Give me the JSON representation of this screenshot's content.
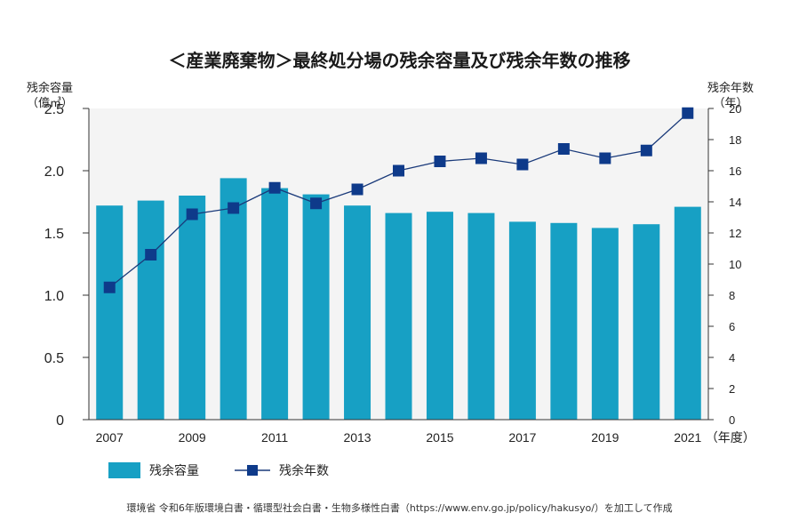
{
  "title": "＜産業廃棄物＞最終処分場の残余容量及び残余年数の推移",
  "left_axis": {
    "title_line1": "残余容量",
    "title_line2": "（億㎥）"
  },
  "right_axis": {
    "title_line1": "残余年数",
    "title_line2": "（年）"
  },
  "x_unit_label": "（年度）",
  "legend": {
    "bars_label": "残余容量",
    "line_label": "残余年数"
  },
  "source": "環境省 令和6年版環境白書・循環型社会白書・生物多様性白書（https://www.env.go.jp/policy/hakusyo/）を加工して作成",
  "colors": {
    "bar": "#17a0c4",
    "line": "#1a3a7a",
    "marker": "#0e3a8a",
    "plot_bg": "#f4f4f4",
    "axis": "#333333"
  },
  "chart_data": {
    "type": "bar+line",
    "title": "＜産業廃棄物＞最終処分場の残余容量及び残余年数の推移",
    "categories": [
      "2007",
      "2008",
      "2009",
      "2010",
      "2011",
      "2012",
      "2013",
      "2014",
      "2015",
      "2016",
      "2017",
      "2018",
      "2019",
      "2020",
      "2021"
    ],
    "x_tick_labels": [
      "2007",
      "",
      "2009",
      "",
      "2011",
      "",
      "2013",
      "",
      "2015",
      "",
      "2017",
      "",
      "2019",
      "",
      "2021"
    ],
    "series": [
      {
        "name": "残余容量",
        "axis": "left",
        "type": "bar",
        "values": [
          1.72,
          1.76,
          1.8,
          1.94,
          1.86,
          1.81,
          1.72,
          1.66,
          1.67,
          1.66,
          1.59,
          1.58,
          1.54,
          1.57,
          1.71
        ]
      },
      {
        "name": "残余年数",
        "axis": "right",
        "type": "line",
        "values": [
          8.5,
          10.6,
          13.2,
          13.6,
          14.9,
          13.9,
          14.8,
          16.0,
          16.6,
          16.8,
          16.4,
          17.4,
          16.8,
          17.3,
          19.7
        ]
      }
    ],
    "ylim_left": [
      0,
      2.5
    ],
    "y_ticks_left": [
      0,
      0.5,
      1.0,
      1.5,
      2.0,
      2.5
    ],
    "y_tick_labels_left": [
      "0",
      "0.5",
      "1.0",
      "1.5",
      "2.0",
      "2.5"
    ],
    "ylim_right": [
      0,
      20
    ],
    "y_ticks_right": [
      0,
      2,
      4,
      6,
      8,
      10,
      12,
      14,
      16,
      18,
      20
    ],
    "y_tick_labels_right": [
      "0",
      "2",
      "4",
      "6",
      "8",
      "10",
      "12",
      "14",
      "16",
      "18",
      "20"
    ],
    "ylabel_left": "残余容量（億㎥）",
    "ylabel_right": "残余年数（年）",
    "xlabel": "（年度）"
  }
}
